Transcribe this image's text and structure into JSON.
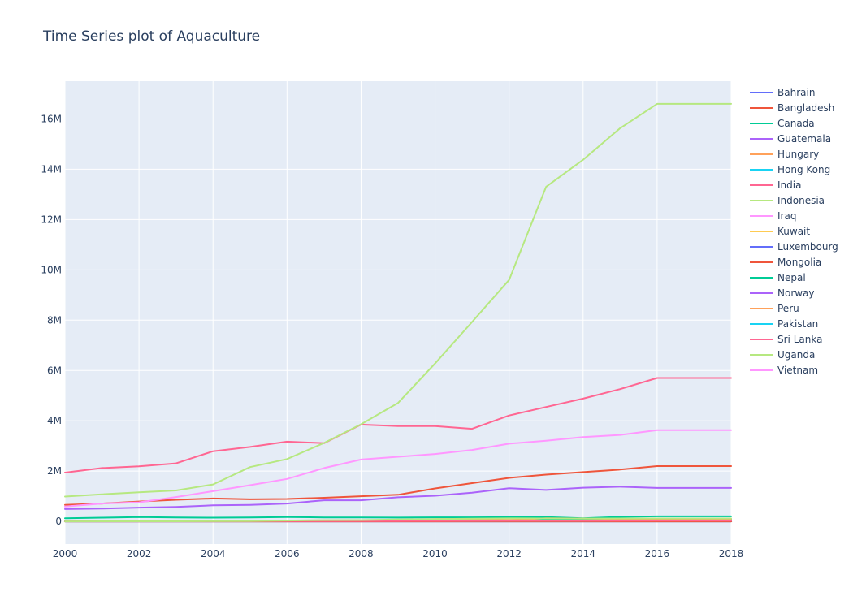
{
  "chart_data": {
    "type": "line",
    "title": "Time Series plot of Aquaculture",
    "xlabel": "",
    "ylabel": "",
    "xlim": [
      2000,
      2018
    ],
    "ylim": [
      -900000,
      17500000
    ],
    "x_ticks": [
      2000,
      2002,
      2004,
      2006,
      2008,
      2010,
      2012,
      2014,
      2016,
      2018
    ],
    "x_tick_labels": [
      "2000",
      "2002",
      "2004",
      "2006",
      "2008",
      "2010",
      "2012",
      "2014",
      "2016",
      "2018"
    ],
    "y_ticks": [
      0,
      2000000,
      4000000,
      6000000,
      8000000,
      10000000,
      12000000,
      14000000,
      16000000
    ],
    "y_tick_labels": [
      "0",
      "2M",
      "4M",
      "6M",
      "8M",
      "10M",
      "12M",
      "14M",
      "16M"
    ],
    "grid": true,
    "legend_position": "right",
    "x": [
      2000,
      2001,
      2002,
      2003,
      2004,
      2005,
      2006,
      2007,
      2008,
      2009,
      2010,
      2011,
      2012,
      2013,
      2014,
      2015,
      2016,
      2017,
      2018
    ],
    "series": [
      {
        "name": "Bahrain",
        "color": "#636efa",
        "values": [
          0,
          0,
          0,
          0,
          0,
          0,
          0,
          0,
          0,
          0,
          0,
          0,
          0,
          0,
          0,
          0,
          0,
          0,
          0
        ]
      },
      {
        "name": "Bangladesh",
        "color": "#EF553B",
        "values": [
          660000,
          710000,
          790000,
          860000,
          910000,
          880000,
          890000,
          940000,
          1000000,
          1060000,
          1310000,
          1520000,
          1730000,
          1860000,
          1960000,
          2060000,
          2200000,
          2200000,
          2200000
        ]
      },
      {
        "name": "Canada",
        "color": "#00cc96",
        "values": [
          125000,
          150000,
          172000,
          158000,
          148000,
          155000,
          172000,
          159000,
          157000,
          152000,
          161000,
          163000,
          168000,
          173000,
          128000,
          180000,
          200000,
          200000,
          200000
        ]
      },
      {
        "name": "Guatemala",
        "color": "#ab63fa",
        "values": [
          5000,
          5000,
          5000,
          5000,
          6000,
          6000,
          6000,
          6000,
          7000,
          7000,
          7000,
          7000,
          8000,
          8000,
          8000,
          9000,
          9000,
          9000,
          9000
        ]
      },
      {
        "name": "Hungary",
        "color": "#FFA15A",
        "values": [
          12000,
          13000,
          12000,
          12000,
          14000,
          14000,
          15000,
          15000,
          15000,
          15000,
          14000,
          14000,
          15000,
          15000,
          15000,
          16000,
          17000,
          17000,
          17000
        ]
      },
      {
        "name": "Hong Kong",
        "color": "#19d3f3",
        "values": [
          3000,
          3000,
          3000,
          3000,
          3000,
          3000,
          3000,
          3000,
          3000,
          3000,
          3000,
          3000,
          3000,
          3000,
          3000,
          3000,
          3000,
          3000,
          3000
        ]
      },
      {
        "name": "India",
        "color": "#FF6692",
        "values": [
          1940000,
          2120000,
          2190000,
          2310000,
          2790000,
          2960000,
          3170000,
          3110000,
          3850000,
          3790000,
          3790000,
          3680000,
          4210000,
          4550000,
          4880000,
          5260000,
          5700000,
          5700000,
          5700000
        ]
      },
      {
        "name": "Indonesia",
        "color": "#B6E880",
        "values": [
          990000,
          1080000,
          1160000,
          1230000,
          1470000,
          2160000,
          2480000,
          3120000,
          3860000,
          4710000,
          6280000,
          7930000,
          9600000,
          13300000,
          14380000,
          15630000,
          16600000,
          16600000,
          16600000
        ]
      },
      {
        "name": "Iraq",
        "color": "#FF97FF",
        "values": [
          20000,
          20000,
          17000,
          18000,
          19000,
          20000,
          20000,
          18000,
          19000,
          21000,
          25000,
          27000,
          28000,
          29000,
          30000,
          31000,
          32000,
          32000,
          32000
        ]
      },
      {
        "name": "Kuwait",
        "color": "#FECB52",
        "values": [
          400,
          400,
          400,
          400,
          400,
          400,
          400,
          400,
          400,
          400,
          400,
          400,
          400,
          400,
          400,
          400,
          400,
          400,
          400
        ]
      },
      {
        "name": "Luxembourg",
        "color": "#636efa",
        "values": [
          0,
          0,
          0,
          0,
          0,
          0,
          0,
          0,
          0,
          0,
          0,
          0,
          0,
          0,
          0,
          0,
          0,
          0,
          0
        ]
      },
      {
        "name": "Mongolia",
        "color": "#EF553B",
        "values": [
          0,
          0,
          0,
          0,
          0,
          0,
          0,
          0,
          0,
          0,
          0,
          0,
          0,
          0,
          0,
          0,
          0,
          0,
          0
        ]
      },
      {
        "name": "Nepal",
        "color": "#00cc96",
        "values": [
          17000,
          18000,
          19000,
          20000,
          22000,
          24000,
          26000,
          28000,
          32000,
          36000,
          40000,
          45000,
          49000,
          52000,
          55000,
          58000,
          62000,
          62000,
          62000
        ]
      },
      {
        "name": "Norway",
        "color": "#ab63fa",
        "values": [
          490000,
          510000,
          550000,
          580000,
          640000,
          660000,
          710000,
          840000,
          840000,
          960000,
          1020000,
          1140000,
          1320000,
          1250000,
          1340000,
          1380000,
          1330000,
          1330000,
          1330000
        ]
      },
      {
        "name": "Peru",
        "color": "#FFA15A",
        "values": [
          7000,
          8000,
          11000,
          14000,
          23000,
          27000,
          28000,
          39000,
          44000,
          44000,
          89000,
          92000,
          52000,
          126000,
          115000,
          90000,
          100000,
          100000,
          100000
        ]
      },
      {
        "name": "Pakistan",
        "color": "#19d3f3",
        "values": [
          18000,
          20000,
          22000,
          24000,
          25000,
          26000,
          27000,
          28000,
          29000,
          30000,
          30000,
          31000,
          32000,
          33000,
          34000,
          35000,
          36000,
          36000,
          36000
        ]
      },
      {
        "name": "Sri Lanka",
        "color": "#FF6692",
        "values": [
          8000,
          9000,
          10000,
          11000,
          12000,
          13000,
          14000,
          15000,
          16000,
          17000,
          20000,
          22000,
          25000,
          28000,
          30000,
          31000,
          32000,
          32000,
          32000
        ]
      },
      {
        "name": "Uganda",
        "color": "#B6E880",
        "values": [
          2000,
          3000,
          4000,
          5000,
          6000,
          10000,
          32000,
          50000,
          52000,
          76000,
          95000,
          110000,
          119000,
          117000,
          112000,
          117000,
          118000,
          118000,
          118000
        ]
      },
      {
        "name": "Vietnam",
        "color": "#FF97FF",
        "values": [
          590000,
          710000,
          760000,
          970000,
          1200000,
          1440000,
          1690000,
          2120000,
          2460000,
          2570000,
          2680000,
          2840000,
          3090000,
          3210000,
          3350000,
          3440000,
          3630000,
          3630000,
          3630000
        ]
      }
    ]
  }
}
